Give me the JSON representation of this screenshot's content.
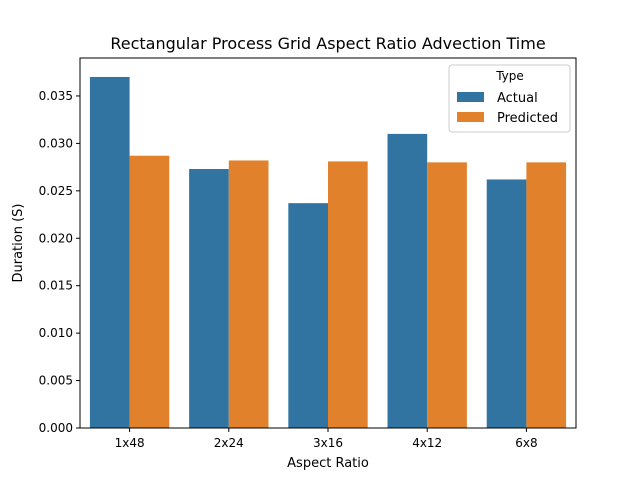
{
  "chart_data": {
    "type": "bar",
    "title": "Rectangular Process Grid Aspect Ratio Advection Time",
    "xlabel": "Aspect Ratio",
    "ylabel": "Duration (S)",
    "categories": [
      "1x48",
      "2x24",
      "3x16",
      "4x12",
      "6x8"
    ],
    "series": [
      {
        "name": "Actual",
        "color": "#3274a1",
        "values": [
          0.037,
          0.0273,
          0.0237,
          0.031,
          0.0262
        ]
      },
      {
        "name": "Predicted",
        "color": "#e1812c",
        "values": [
          0.0287,
          0.0282,
          0.0281,
          0.028,
          0.028
        ]
      }
    ],
    "ylim": [
      0,
      0.039
    ],
    "yticks": [
      "0.000",
      "0.005",
      "0.010",
      "0.015",
      "0.020",
      "0.025",
      "0.030",
      "0.035"
    ],
    "grid": false,
    "legend": {
      "title": "Type",
      "placement": "top-right"
    }
  }
}
